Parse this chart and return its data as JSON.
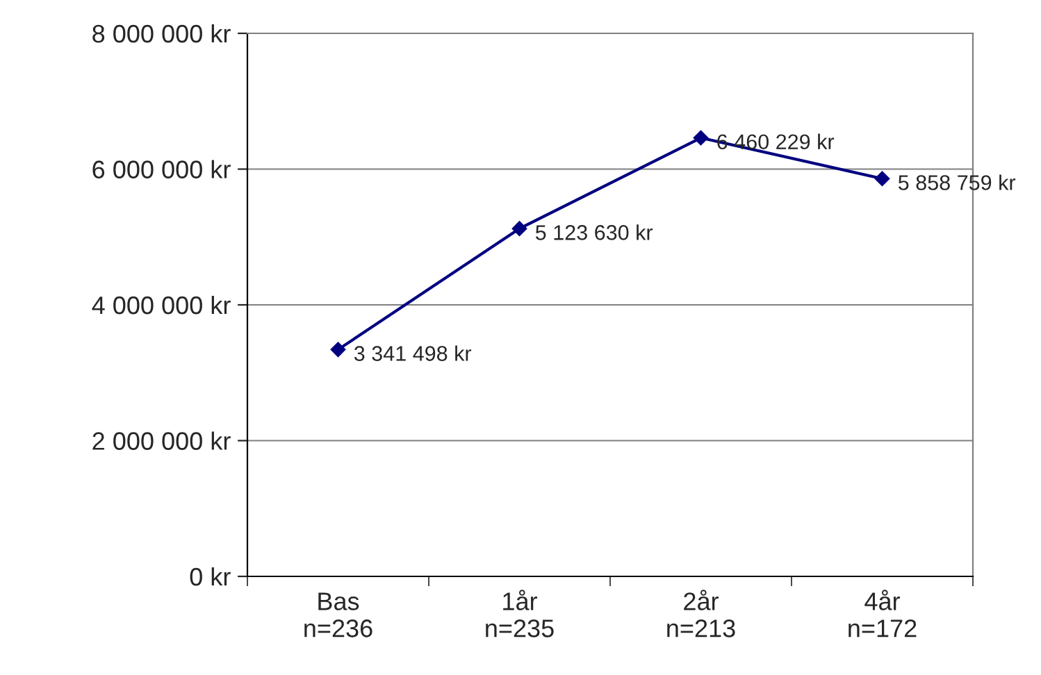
{
  "chart_data": {
    "type": "line",
    "categories": [
      "Bas\nn=236",
      "1år\nn=235",
      "2år\nn=213",
      "4år\nn=172"
    ],
    "series": [
      {
        "color": "#000080",
        "values": [
          3341498,
          5123630,
          6460229,
          5858759
        ],
        "value_labels": [
          "3 341 498 kr",
          "5 123 630 kr",
          "6 460 229 kr",
          "5 858 759 kr"
        ]
      }
    ],
    "ylim": [
      0,
      8000000
    ],
    "yticks": [
      {
        "value": 0,
        "label": "0 kr"
      },
      {
        "value": 2000000,
        "label": "2 000 000 kr"
      },
      {
        "value": 4000000,
        "label": "4 000 000 kr"
      },
      {
        "value": 6000000,
        "label": "6 000 000 kr"
      },
      {
        "value": 8000000,
        "label": "8 000 000 kr"
      }
    ],
    "grid": "y",
    "marker": "diamond",
    "line_style": "solid",
    "legend": false
  }
}
